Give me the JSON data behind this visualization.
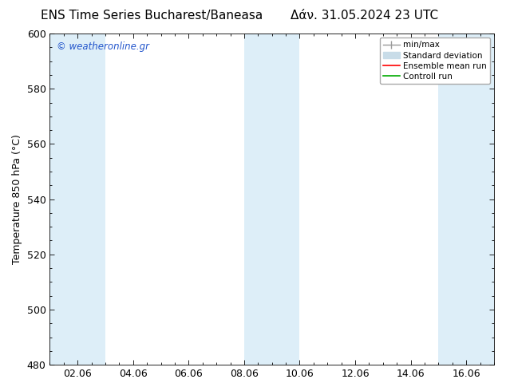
{
  "title_left": "ENS Time Series Bucharest/Baneasa",
  "title_right": "Δάν. 31.05.2024 23 UTC",
  "ylabel": "Temperature 850 hPa (°C)",
  "ylim": [
    480,
    600
  ],
  "yticks": [
    480,
    500,
    520,
    540,
    560,
    580,
    600
  ],
  "bg_color": "#ffffff",
  "plot_bg_color": "#ffffff",
  "shaded_color": "#ddeef8",
  "watermark_text": "© weatheronline.gr",
  "watermark_color": "#2255cc",
  "legend_entries": [
    {
      "label": "min/max",
      "color": "#999999",
      "lw": 1.0
    },
    {
      "label": "Standard deviation",
      "color": "#c8dce8",
      "lw": 6
    },
    {
      "label": "Ensemble mean run",
      "color": "#ff0000",
      "lw": 1.2
    },
    {
      "label": "Controll run",
      "color": "#00aa00",
      "lw": 1.2
    }
  ],
  "xtick_labels": [
    "02.06",
    "04.06",
    "06.06",
    "08.06",
    "10.06",
    "12.06",
    "14.06",
    "16.06"
  ],
  "xtick_positions": [
    1,
    3,
    5,
    7,
    9,
    11,
    13,
    15
  ],
  "x_min": 0,
  "x_max": 16,
  "border_color": "#aaaaaa",
  "tick_color": "#000000",
  "label_fontsize": 9,
  "title_fontsize": 11,
  "shaded_ranges": [
    [
      0,
      2
    ],
    [
      7,
      9
    ],
    [
      14,
      16
    ]
  ]
}
